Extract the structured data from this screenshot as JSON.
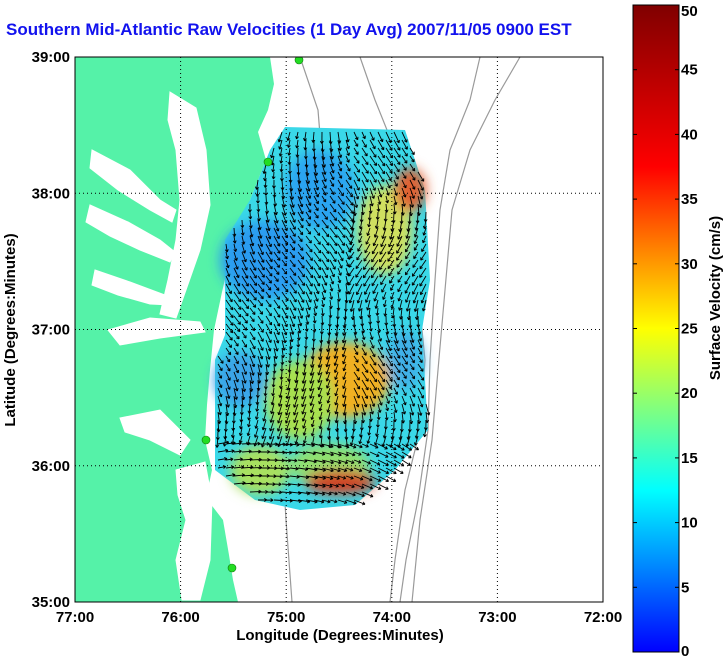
{
  "title": "Southern Mid-Atlantic Raw Velocities (1 Day Avg) 2007/11/05 0900 EST",
  "map": {
    "xlabel": "Longitude (Degrees:Minutes)",
    "ylabel": "Latitude (Degrees:Minutes)",
    "lon_range": [
      -77,
      -72
    ],
    "lat_range": [
      35,
      39
    ],
    "x_ticks": [
      "77:00",
      "76:00",
      "75:00",
      "74:00",
      "73:00",
      "72:00"
    ],
    "y_ticks": [
      "39:00",
      "38:00",
      "37:00",
      "36:00",
      "35:00"
    ],
    "grid": "dotted",
    "land_color": "#55f2a8",
    "water_color": "#ffffff",
    "bathymetry_color": "#9a9a9a",
    "vector_color": "#000000",
    "station_color": "#22dd22"
  },
  "colorbar": {
    "label": "Surface Velocity (cm/s)",
    "min": 0,
    "max": 50,
    "ticks": [
      "0",
      "5",
      "10",
      "15",
      "20",
      "25",
      "30",
      "35",
      "40",
      "45",
      "50"
    ],
    "colormap": "jet"
  }
}
